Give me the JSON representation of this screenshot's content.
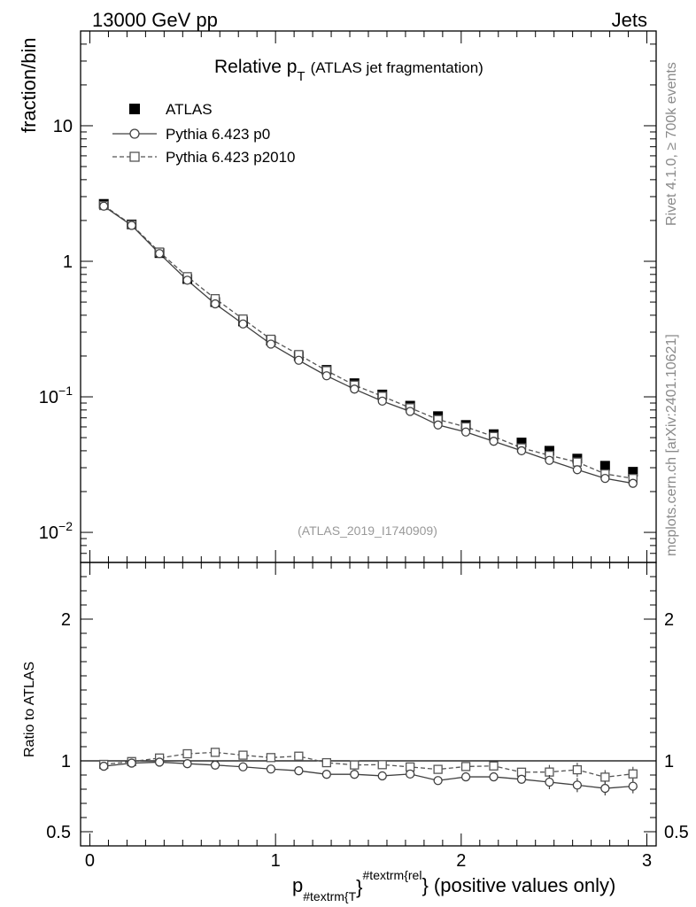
{
  "header": {
    "left": "13000 GeV pp",
    "right": "Jets"
  },
  "side_text": {
    "top": "Rivet 4.1.0, ≥ 700k events",
    "bottom": "mcplots.cern.ch [arXiv:2401.10621]"
  },
  "chart_data": {
    "type": "line",
    "title": "Relative p",
    "title_sub": "T",
    "title_suffix": "(ATLAS jet fragmentation)",
    "analysis_id": "(ATLAS_2019_I1740909)",
    "ylabel": "fraction/bin",
    "ratio_ylabel": "Ratio to ATLAS",
    "xlabel_main": "p",
    "xlabel_sub": "#textrm{T",
    "xlabel_sup": "#textrm{rel",
    "xlabel_brace": "}",
    "xlabel_suffix": "} (positive values only)",
    "xlim": [
      -0.05,
      3.05
    ],
    "ylim": [
      0.006,
      50
    ],
    "ratio_ylim": [
      0.4,
      2.4
    ],
    "x_ticks": [
      "0",
      "1",
      "2",
      "3"
    ],
    "y_ticks": [
      {
        "base": "10",
        "exp": "−2",
        "value": 0.01
      },
      {
        "base": "10",
        "exp": "−1",
        "value": 0.1
      },
      {
        "base": "1",
        "exp": "",
        "value": 1
      },
      {
        "base": "10",
        "exp": "",
        "value": 10
      }
    ],
    "ratio_ticks": [
      "0.5",
      "1",
      "2"
    ],
    "x": [
      0.075,
      0.225,
      0.375,
      0.525,
      0.675,
      0.825,
      0.975,
      1.125,
      1.275,
      1.425,
      1.575,
      1.725,
      1.875,
      2.025,
      2.175,
      2.325,
      2.475,
      2.625,
      2.775,
      2.925
    ],
    "series": [
      {
        "name": "ATLAS",
        "marker": "filled-square",
        "line": "none",
        "values": [
          2.65,
          1.87,
          1.15,
          0.74,
          0.5,
          0.36,
          0.26,
          0.2,
          0.158,
          0.126,
          0.104,
          0.086,
          0.072,
          0.062,
          0.053,
          0.046,
          0.04,
          0.035,
          0.031,
          0.028
        ]
      },
      {
        "name": "Pythia 6.423 p0",
        "marker": "open-circle",
        "line": "solid",
        "values": [
          2.55,
          1.84,
          1.14,
          0.725,
          0.485,
          0.345,
          0.245,
          0.186,
          0.143,
          0.114,
          0.093,
          0.078,
          0.062,
          0.055,
          0.047,
          0.04,
          0.034,
          0.029,
          0.025,
          0.023
        ],
        "ratio": [
          0.962,
          0.984,
          0.991,
          0.98,
          0.97,
          0.958,
          0.942,
          0.93,
          0.905,
          0.905,
          0.894,
          0.907,
          0.861,
          0.887,
          0.887,
          0.87,
          0.85,
          0.829,
          0.806,
          0.821
        ]
      },
      {
        "name": "Pythia 6.423 p2010",
        "marker": "open-square",
        "line": "dashed",
        "values": [
          2.58,
          1.86,
          1.17,
          0.77,
          0.53,
          0.375,
          0.266,
          0.205,
          0.156,
          0.122,
          0.101,
          0.083,
          0.068,
          0.06,
          0.051,
          0.042,
          0.037,
          0.033,
          0.027,
          0.025
        ],
        "ratio": [
          0.975,
          0.995,
          1.02,
          1.05,
          1.06,
          1.04,
          1.023,
          1.033,
          0.987,
          0.971,
          0.973,
          0.957,
          0.94,
          0.96,
          0.964,
          0.92,
          0.921,
          0.937,
          0.885,
          0.908
        ]
      }
    ]
  },
  "colors": {
    "atlas": "#000000",
    "p0": "#404040",
    "p2010": "#555555",
    "side_text": "#8a8a8a",
    "analysis_text": "#999999"
  }
}
